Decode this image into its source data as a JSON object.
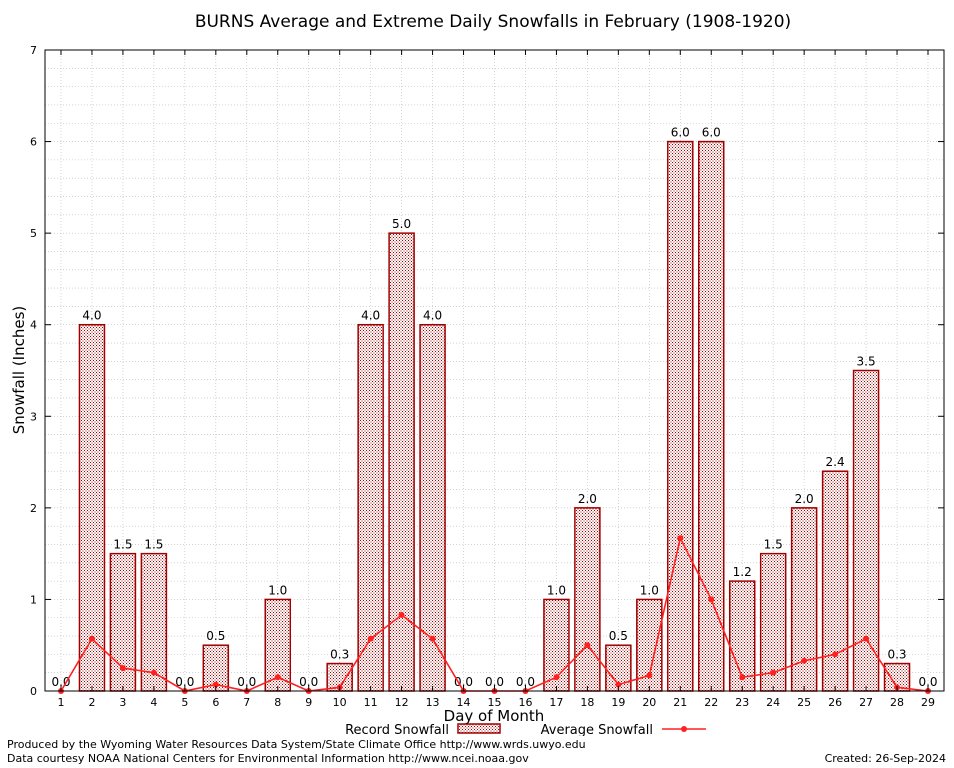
{
  "chart_data": {
    "type": "bar",
    "title": "BURNS Average and Extreme Daily Snowfalls in February (1908-1920)",
    "xlabel": "Day of Month",
    "ylabel": "Snowfall (Inches)",
    "ylim": [
      0,
      7
    ],
    "yticks": [
      "0",
      "1",
      "2",
      "3",
      "4",
      "5",
      "6",
      "7"
    ],
    "grid": true,
    "legend_placement": "bottom",
    "categories": [
      "1",
      "2",
      "3",
      "4",
      "5",
      "6",
      "7",
      "8",
      "9",
      "10",
      "11",
      "12",
      "13",
      "14",
      "15",
      "16",
      "17",
      "18",
      "19",
      "20",
      "21",
      "22",
      "23",
      "24",
      "25",
      "26",
      "27",
      "28",
      "29"
    ],
    "series": [
      {
        "name": "Record Snowfall",
        "kind": "bar",
        "color": "#a00000",
        "values": [
          0.0,
          4.0,
          1.5,
          1.5,
          0.0,
          0.5,
          0.0,
          1.0,
          0.0,
          0.3,
          4.0,
          5.0,
          4.0,
          0.0,
          0.0,
          0.0,
          1.0,
          2.0,
          0.5,
          1.0,
          6.0,
          6.0,
          1.2,
          1.5,
          2.0,
          2.4,
          3.5,
          0.3,
          0.0
        ],
        "labels": [
          "0.0",
          "4.0",
          "1.5",
          "1.5",
          "0.0",
          "0.5",
          "0.0",
          "1.0",
          "0.0",
          "0.3",
          "4.0",
          "5.0",
          "4.0",
          "0.0",
          "0.0",
          "0.0",
          "1.0",
          "2.0",
          "0.5",
          "1.0",
          "6.0",
          "6.0",
          "1.2",
          "1.5",
          "2.0",
          "2.4",
          "3.5",
          "0.3",
          "0.0"
        ]
      },
      {
        "name": "Average Snowfall",
        "kind": "line",
        "color": "#ff2020",
        "values": [
          0.0,
          0.57,
          0.25,
          0.2,
          0.0,
          0.07,
          0.0,
          0.15,
          0.0,
          0.04,
          0.57,
          0.83,
          0.57,
          0.0,
          0.0,
          0.0,
          0.15,
          0.5,
          0.07,
          0.17,
          1.67,
          1.0,
          0.15,
          0.2,
          0.33,
          0.4,
          0.57,
          0.04,
          0.0
        ]
      }
    ]
  },
  "footer": {
    "line1": "Produced by the Wyoming Water Resources Data System/State Climate Office http://www.wrds.uwyo.edu",
    "line2": "Data courtesy NOAA National Centers for Environmental Information http://www.ncei.noaa.gov",
    "created": "Created:  26-Sep-2024"
  },
  "colors": {
    "bar_edge": "#a00000",
    "bar_fill": "#e8c8c8",
    "line": "#ff2020",
    "grid": "#b0b0b0"
  }
}
